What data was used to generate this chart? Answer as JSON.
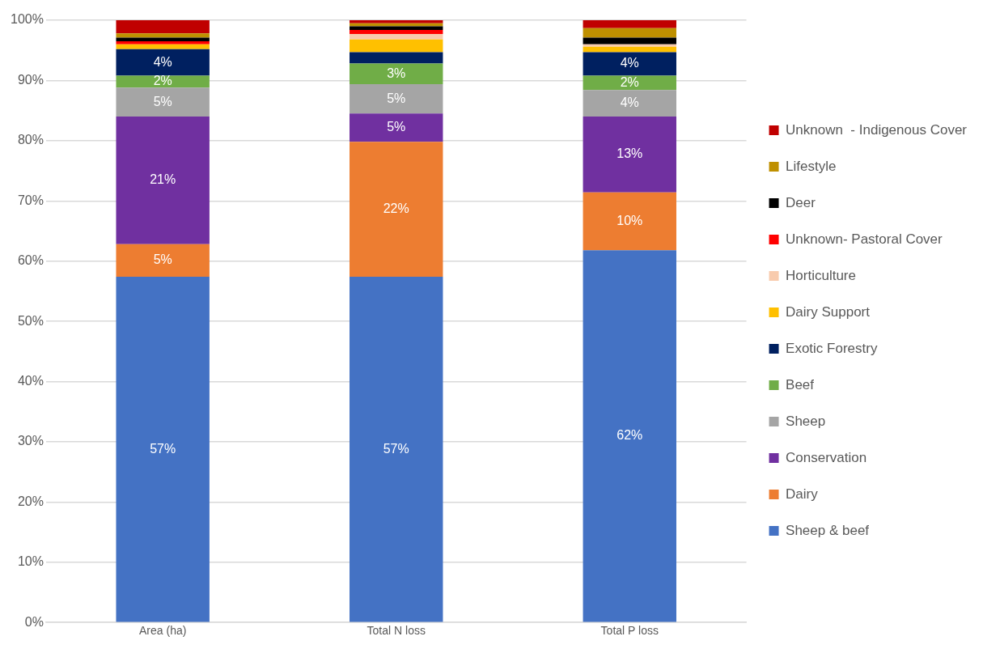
{
  "chart_data": {
    "type": "bar",
    "stacked": true,
    "categories": [
      "Area (ha)",
      "Total N loss",
      "Total P loss"
    ],
    "ylim": [
      0,
      100
    ],
    "yticks": [
      {
        "value": 0,
        "label": "0%"
      },
      {
        "value": 10,
        "label": "10%"
      },
      {
        "value": 20,
        "label": "20%"
      },
      {
        "value": 30,
        "label": "30%"
      },
      {
        "value": 40,
        "label": "40%"
      },
      {
        "value": 50,
        "label": "50%"
      },
      {
        "value": 60,
        "label": "60%"
      },
      {
        "value": 70,
        "label": "70%"
      },
      {
        "value": 80,
        "label": "80%"
      },
      {
        "value": 90,
        "label": "90%"
      },
      {
        "value": 100,
        "label": "100%"
      }
    ],
    "grid": "y",
    "legend": "right",
    "series": [
      {
        "name": "Sheep & beef",
        "color": "#4472c4",
        "values": [
          57.4,
          57.4,
          61.8
        ],
        "value_labels": [
          "57%",
          "57%",
          "62%"
        ]
      },
      {
        "name": "Dairy",
        "color": "#ed7d31",
        "values": [
          5.4,
          22.4,
          9.6
        ],
        "value_labels": [
          "5%",
          "22%",
          "10%"
        ]
      },
      {
        "name": "Conservation",
        "color": "#7030a0",
        "values": [
          21.2,
          4.7,
          12.6
        ],
        "value_labels": [
          "21%",
          "5%",
          "13%"
        ]
      },
      {
        "name": "Sheep",
        "color": "#a5a5a5",
        "values": [
          4.8,
          4.9,
          4.4
        ],
        "value_labels": [
          "5%",
          "5%",
          "4%"
        ]
      },
      {
        "name": "Beef",
        "color": "#70ad47",
        "values": [
          2.0,
          3.4,
          2.4
        ],
        "value_labels": [
          "2%",
          "3%",
          "2%"
        ]
      },
      {
        "name": "Exotic Forestry",
        "color": "#002060",
        "values": [
          4.4,
          1.9,
          3.9
        ],
        "value_labels": [
          "4%",
          null,
          "4%"
        ]
      },
      {
        "name": "Dairy Support",
        "color": "#ffc000",
        "values": [
          0.8,
          2.1,
          0.9
        ]
      },
      {
        "name": "Horticulture",
        "color": "#f8cbad",
        "values": [
          0,
          0.9,
          0.4
        ]
      },
      {
        "name": "Unknown- Pastoral Cover",
        "color": "#ff0000",
        "values": [
          0.5,
          0.7,
          0
        ]
      },
      {
        "name": "Deer",
        "color": "#000000",
        "values": [
          0.6,
          0.6,
          1.1
        ]
      },
      {
        "name": "Lifestyle",
        "color": "#bf9000",
        "values": [
          0.7,
          0.5,
          1.6
        ]
      },
      {
        "name": "Unknown  - Indigenous Cover",
        "color": "#c00000",
        "values": [
          2.2,
          0.5,
          1.3
        ]
      }
    ]
  }
}
